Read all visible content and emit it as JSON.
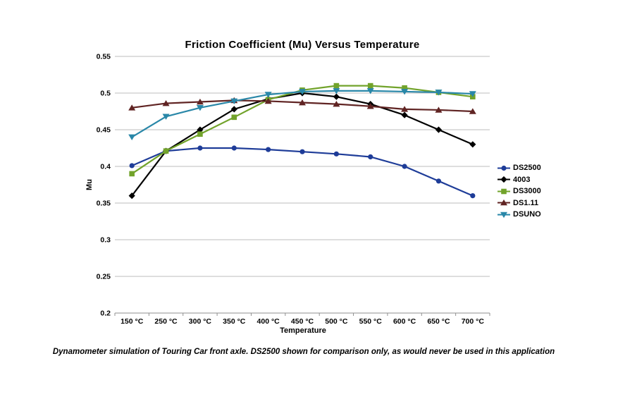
{
  "chart_data": {
    "type": "line",
    "title": "Friction Coefficient (Mu) Versus Temperature",
    "xlabel": "Temperature",
    "ylabel": "Mu",
    "caption": "Dynamometer simulation of Touring Car front axle. DS2500 shown for comparison only, as would never be used in this application",
    "categories": [
      "150 °C",
      "250 °C",
      "300 °C",
      "350 °C",
      "400 °C",
      "450 °C",
      "500 °C",
      "550 °C",
      "600 °C",
      "650 °C",
      "700 °C"
    ],
    "y_tick_labels": [
      "0.55",
      "0.5",
      "0.45",
      "0.4",
      "0.35",
      "0.3",
      "0.25",
      "0.2"
    ],
    "y_tick_values": [
      0.55,
      0.5,
      0.45,
      0.4,
      0.35,
      0.3,
      0.25,
      0.2
    ],
    "ylim": [
      0.2,
      0.55
    ],
    "grid": "horizontal",
    "legend_position": "right",
    "colors": {
      "gridline": "#bdbdbd",
      "axis": "#8f8f8f",
      "text": "#000000"
    },
    "series": [
      {
        "name": "DS2500",
        "color": "#1E3C98",
        "marker": "circle",
        "values": [
          0.401,
          0.421,
          0.425,
          0.425,
          0.423,
          0.42,
          0.417,
          0.413,
          0.4,
          0.38,
          0.36
        ]
      },
      {
        "name": "4003",
        "color": "#000000",
        "marker": "diamond",
        "values": [
          0.36,
          0.421,
          0.45,
          0.478,
          0.492,
          0.5,
          0.495,
          0.485,
          0.47,
          0.45,
          0.43
        ]
      },
      {
        "name": "DS3000",
        "color": "#72A32B",
        "marker": "square",
        "values": [
          0.39,
          0.421,
          0.444,
          0.467,
          0.491,
          0.504,
          0.51,
          0.51,
          0.507,
          0.501,
          0.495
        ]
      },
      {
        "name": "DS1.11",
        "color": "#602423",
        "marker": "triangle-up",
        "values": [
          0.48,
          0.486,
          0.488,
          0.49,
          0.489,
          0.487,
          0.485,
          0.482,
          0.478,
          0.477,
          0.475
        ]
      },
      {
        "name": "DSUNO",
        "color": "#2987A8",
        "marker": "triangle-down",
        "values": [
          0.44,
          0.468,
          0.48,
          0.489,
          0.498,
          0.502,
          0.503,
          0.503,
          0.502,
          0.501,
          0.499
        ]
      }
    ]
  }
}
